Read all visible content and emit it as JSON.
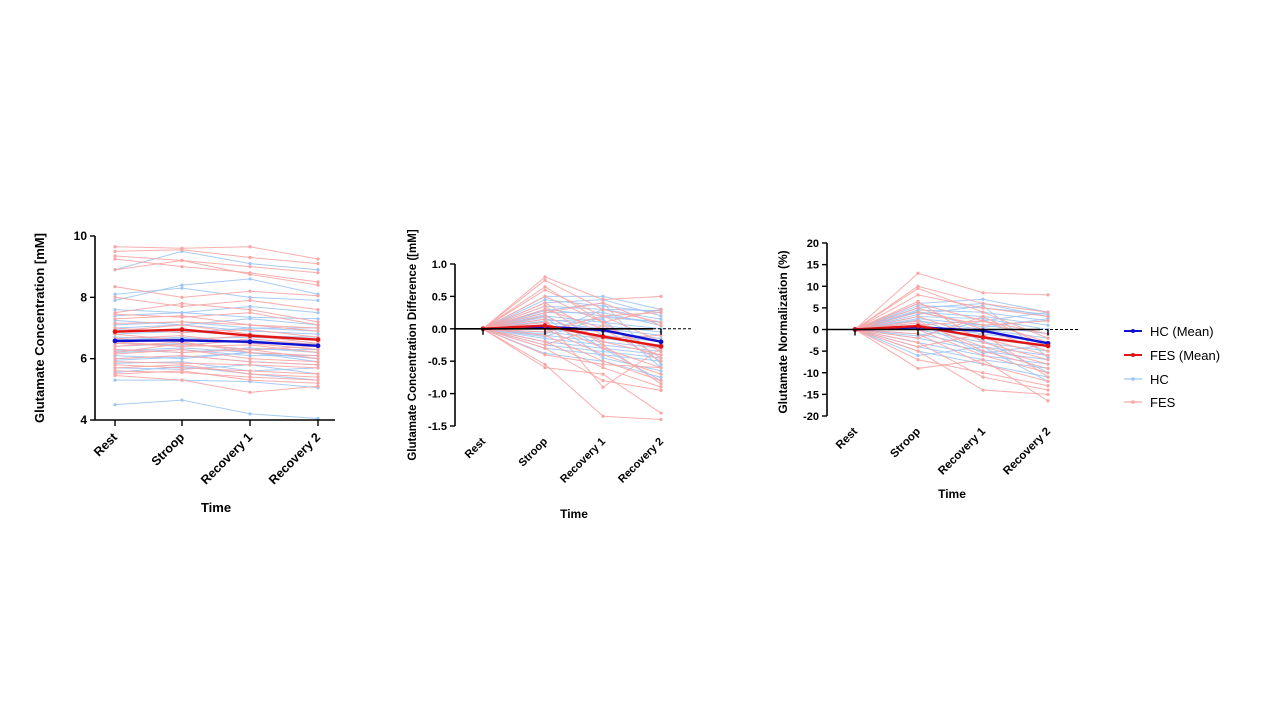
{
  "legend": {
    "items": [
      {
        "label": "HC (Mean)",
        "color": "#1010d0",
        "kind": "mean"
      },
      {
        "label": "FES (Mean)",
        "color": "#e01515",
        "kind": "mean"
      },
      {
        "label": "HC",
        "color": "#9ec5f4",
        "kind": "individual"
      },
      {
        "label": "FES",
        "color": "#f7a5a5",
        "kind": "individual"
      }
    ]
  },
  "chart_data": [
    {
      "type": "line",
      "categories": [
        "Rest",
        "Stroop",
        "Recovery 1",
        "Recovery 2"
      ],
      "xlabel": "Time",
      "ylabel": "Glutamate Concentration [mM]",
      "ylim": [
        4,
        10
      ],
      "yticks": [
        4,
        6,
        8,
        10
      ],
      "ytick_labels": [
        "4",
        "6",
        "8",
        "10"
      ],
      "zero_line": false,
      "series": [
        {
          "name": "HC (Mean)",
          "values": [
            6.58,
            6.6,
            6.55,
            6.42
          ]
        },
        {
          "name": "FES (Mean)",
          "values": [
            6.88,
            6.95,
            6.75,
            6.62
          ]
        }
      ],
      "individuals": {
        "HC": [
          [
            4.5,
            4.65,
            4.2,
            4.05
          ],
          [
            5.3,
            5.3,
            5.25,
            5.05
          ],
          [
            5.55,
            5.75,
            5.5,
            5.3
          ],
          [
            5.7,
            5.65,
            5.8,
            5.5
          ],
          [
            5.85,
            5.9,
            5.6,
            5.7
          ],
          [
            6.0,
            6.1,
            5.9,
            5.8
          ],
          [
            6.1,
            6.0,
            6.2,
            6.0
          ],
          [
            6.2,
            6.3,
            6.1,
            6.1
          ],
          [
            6.3,
            6.2,
            6.35,
            6.2
          ],
          [
            6.4,
            6.5,
            6.3,
            6.3
          ],
          [
            6.5,
            6.45,
            6.6,
            6.4
          ],
          [
            6.6,
            6.7,
            6.5,
            6.5
          ],
          [
            6.7,
            6.65,
            6.7,
            6.6
          ],
          [
            6.8,
            6.9,
            6.75,
            6.7
          ],
          [
            6.95,
            6.85,
            7.0,
            6.9
          ],
          [
            7.1,
            7.2,
            7.0,
            7.0
          ],
          [
            7.25,
            7.1,
            7.3,
            7.1
          ],
          [
            7.4,
            7.5,
            7.35,
            7.3
          ],
          [
            7.6,
            7.5,
            7.7,
            7.5
          ],
          [
            7.9,
            8.4,
            8.6,
            8.1
          ],
          [
            8.1,
            8.3,
            8.0,
            7.9
          ],
          [
            8.9,
            9.5,
            9.1,
            8.9
          ],
          [
            6.25,
            6.35,
            6.2,
            5.9
          ],
          [
            5.95,
            6.05,
            6.2,
            6.0
          ],
          [
            7.0,
            7.1,
            6.9,
            6.8
          ]
        ],
        "FES": [
          [
            9.65,
            9.6,
            9.65,
            9.25
          ],
          [
            9.5,
            9.55,
            9.3,
            9.1
          ],
          [
            9.35,
            9.2,
            9.0,
            8.8
          ],
          [
            9.25,
            9.0,
            8.8,
            8.5
          ],
          [
            8.9,
            9.2,
            8.75,
            8.4
          ],
          [
            8.35,
            8.0,
            8.2,
            8.05
          ],
          [
            8.0,
            7.7,
            7.9,
            7.6
          ],
          [
            7.5,
            7.8,
            7.6,
            7.2
          ],
          [
            7.3,
            7.4,
            7.1,
            7.0
          ],
          [
            7.15,
            7.2,
            7.1,
            6.9
          ],
          [
            7.0,
            6.85,
            6.95,
            6.7
          ],
          [
            6.9,
            7.1,
            6.8,
            6.6
          ],
          [
            6.8,
            6.6,
            6.75,
            6.5
          ],
          [
            6.65,
            6.75,
            6.5,
            6.3
          ],
          [
            6.5,
            6.4,
            6.45,
            6.2
          ],
          [
            6.4,
            6.55,
            6.2,
            6.1
          ],
          [
            6.3,
            6.2,
            6.3,
            6.0
          ],
          [
            6.15,
            6.3,
            6.0,
            5.9
          ],
          [
            6.0,
            6.1,
            5.9,
            5.8
          ],
          [
            5.9,
            5.85,
            5.8,
            5.7
          ],
          [
            5.8,
            5.7,
            5.6,
            5.5
          ],
          [
            5.7,
            5.8,
            5.5,
            5.4
          ],
          [
            5.6,
            5.55,
            5.4,
            5.3
          ],
          [
            5.5,
            5.6,
            5.3,
            5.2
          ],
          [
            5.45,
            5.3,
            4.9,
            5.1
          ],
          [
            6.2,
            6.5,
            6.3,
            6.4
          ],
          [
            7.45,
            7.35,
            7.5,
            7.1
          ],
          [
            6.55,
            6.4,
            6.65,
            6.45
          ]
        ]
      }
    },
    {
      "type": "line",
      "categories": [
        "Rest",
        "Stroop",
        "Recovery 1",
        "Recovery 2"
      ],
      "xlabel": "Time",
      "ylabel": "Glutamate Concentration Difference ([mM]",
      "ylim": [
        -1.5,
        1.0
      ],
      "yticks": [
        -1.5,
        -1.0,
        -0.5,
        0.0,
        0.5,
        1.0
      ],
      "ytick_labels": [
        "-1.5",
        "-1.0",
        "-0.5",
        "0.0",
        "0.5",
        "1.0"
      ],
      "zero_line": true,
      "series": [
        {
          "name": "HC (Mean)",
          "values": [
            0.0,
            0.03,
            -0.02,
            -0.2
          ]
        },
        {
          "name": "FES (Mean)",
          "values": [
            0.0,
            0.05,
            -0.12,
            -0.27
          ]
        }
      ],
      "individuals": {
        "HC": [
          [
            0,
            0.5,
            0.5,
            0.3
          ],
          [
            0,
            0.45,
            0.35,
            0.25
          ],
          [
            0,
            0.4,
            0.45,
            0.2
          ],
          [
            0,
            0.35,
            0.3,
            0.15
          ],
          [
            0,
            0.3,
            0.2,
            0.1
          ],
          [
            0,
            0.25,
            0.25,
            0.05
          ],
          [
            0,
            0.2,
            0.1,
            0.0
          ],
          [
            0,
            0.15,
            0.05,
            -0.05
          ],
          [
            0,
            0.1,
            0.0,
            -0.1
          ],
          [
            0,
            0.05,
            -0.05,
            -0.15
          ],
          [
            0,
            0.0,
            -0.1,
            -0.2
          ],
          [
            0,
            -0.05,
            -0.15,
            -0.25
          ],
          [
            0,
            -0.1,
            -0.2,
            -0.3
          ],
          [
            0,
            -0.15,
            -0.25,
            -0.35
          ],
          [
            0,
            -0.2,
            -0.3,
            -0.4
          ],
          [
            0,
            -0.25,
            -0.35,
            -0.45
          ],
          [
            0,
            -0.3,
            -0.4,
            -0.5
          ],
          [
            0,
            -0.38,
            -0.5,
            -0.75
          ],
          [
            0,
            0.28,
            0.4,
            -0.55
          ],
          [
            0,
            0.18,
            -0.45,
            -0.65
          ],
          [
            0,
            -0.08,
            0.3,
            0.28
          ],
          [
            0,
            0.12,
            0.15,
            -0.6
          ],
          [
            0,
            0.22,
            -0.3,
            -0.8
          ],
          [
            0,
            -0.12,
            0.18,
            0.1
          ]
        ],
        "FES": [
          [
            0,
            0.8,
            0.45,
            0.5
          ],
          [
            0,
            0.75,
            0.3,
            0.1
          ],
          [
            0,
            0.6,
            0.2,
            -0.2
          ],
          [
            0,
            0.5,
            0.1,
            0.3
          ],
          [
            0,
            0.4,
            -0.1,
            -0.3
          ],
          [
            0,
            0.3,
            0.0,
            -0.5
          ],
          [
            0,
            0.2,
            -0.2,
            -0.4
          ],
          [
            0,
            0.1,
            -0.3,
            -0.6
          ],
          [
            0,
            0.0,
            -0.4,
            -0.7
          ],
          [
            0,
            -0.1,
            -0.5,
            -0.8
          ],
          [
            0,
            -0.2,
            -0.6,
            -0.9
          ],
          [
            0,
            -0.3,
            -0.8,
            -0.95
          ],
          [
            0,
            -0.55,
            -1.35,
            -1.4
          ],
          [
            0,
            -0.6,
            -0.7,
            -1.3
          ],
          [
            0,
            0.15,
            -0.9,
            -0.3
          ],
          [
            0,
            -0.05,
            0.2,
            0.25
          ],
          [
            0,
            0.35,
            -0.25,
            -0.85
          ],
          [
            0,
            0.25,
            0.4,
            0.05
          ],
          [
            0,
            -0.4,
            -0.55,
            -0.6
          ],
          [
            0,
            0.05,
            -0.15,
            -0.1
          ],
          [
            0,
            0.65,
            0.1,
            -0.45
          ],
          [
            0,
            -0.25,
            0.05,
            -0.35
          ]
        ]
      }
    },
    {
      "type": "line",
      "categories": [
        "Rest",
        "Stroop",
        "Recovery 1",
        "Recovery 2"
      ],
      "xlabel": "Time",
      "ylabel": "Glutamate Normalization  (%)",
      "ylim": [
        -20,
        20
      ],
      "yticks": [
        -20,
        -15,
        -10,
        -5,
        0,
        5,
        10,
        15,
        20
      ],
      "ytick_labels": [
        "-20",
        "-15",
        "-10",
        "-5",
        "0",
        "5",
        "10",
        "15",
        "20"
      ],
      "zero_line": true,
      "series": [
        {
          "name": "HC (Mean)",
          "values": [
            0,
            0.5,
            -0.3,
            -3.2
          ]
        },
        {
          "name": "FES (Mean)",
          "values": [
            0,
            0.8,
            -1.8,
            -3.8
          ]
        }
      ],
      "individuals": {
        "HC": [
          [
            0,
            6,
            7,
            4
          ],
          [
            0,
            5.5,
            5,
            3.5
          ],
          [
            0,
            5,
            6,
            3
          ],
          [
            0,
            4.5,
            4,
            2
          ],
          [
            0,
            4,
            3,
            1
          ],
          [
            0,
            3,
            2.5,
            0
          ],
          [
            0,
            2.5,
            1,
            -1
          ],
          [
            0,
            2,
            0,
            -2
          ],
          [
            0,
            1,
            -1,
            -3
          ],
          [
            0,
            0.5,
            -2,
            -4
          ],
          [
            0,
            0,
            -3,
            -5
          ],
          [
            0,
            -1,
            -4,
            -6
          ],
          [
            0,
            -2,
            -5,
            -7
          ],
          [
            0,
            -3,
            -6,
            -8
          ],
          [
            0,
            -4,
            -7,
            -9
          ],
          [
            0,
            -5,
            -8,
            -11
          ],
          [
            0,
            -6,
            -4,
            -12
          ],
          [
            0,
            3.5,
            5.5,
            -6.5
          ],
          [
            0,
            1.5,
            -5.5,
            -3.5
          ],
          [
            0,
            -1.5,
            2,
            4
          ],
          [
            0,
            2.2,
            -2.5,
            -10
          ],
          [
            0,
            4.2,
            0.5,
            2.5
          ]
        ],
        "FES": [
          [
            0,
            13,
            8.5,
            8
          ],
          [
            0,
            10,
            6,
            4
          ],
          [
            0,
            9.5,
            4,
            -2
          ],
          [
            0,
            8,
            5,
            3
          ],
          [
            0,
            6,
            2,
            -3
          ],
          [
            0,
            5,
            0,
            -5
          ],
          [
            0,
            3,
            -2,
            -6
          ],
          [
            0,
            1.5,
            -4,
            -8
          ],
          [
            0,
            0,
            -6,
            -10
          ],
          [
            0,
            -1,
            -8,
            -12
          ],
          [
            0,
            -3,
            -11,
            -14
          ],
          [
            0,
            -5,
            -14,
            -15
          ],
          [
            0,
            -9,
            -7,
            -16.5
          ],
          [
            0,
            -7,
            -10,
            -13
          ],
          [
            0,
            2,
            -5,
            -9
          ],
          [
            0,
            4,
            1,
            2
          ],
          [
            0,
            -2,
            3,
            -4
          ],
          [
            0,
            6.5,
            -3,
            -7
          ],
          [
            0,
            -4,
            -1,
            -11
          ],
          [
            0,
            1,
            2,
            -1
          ]
        ]
      }
    }
  ]
}
